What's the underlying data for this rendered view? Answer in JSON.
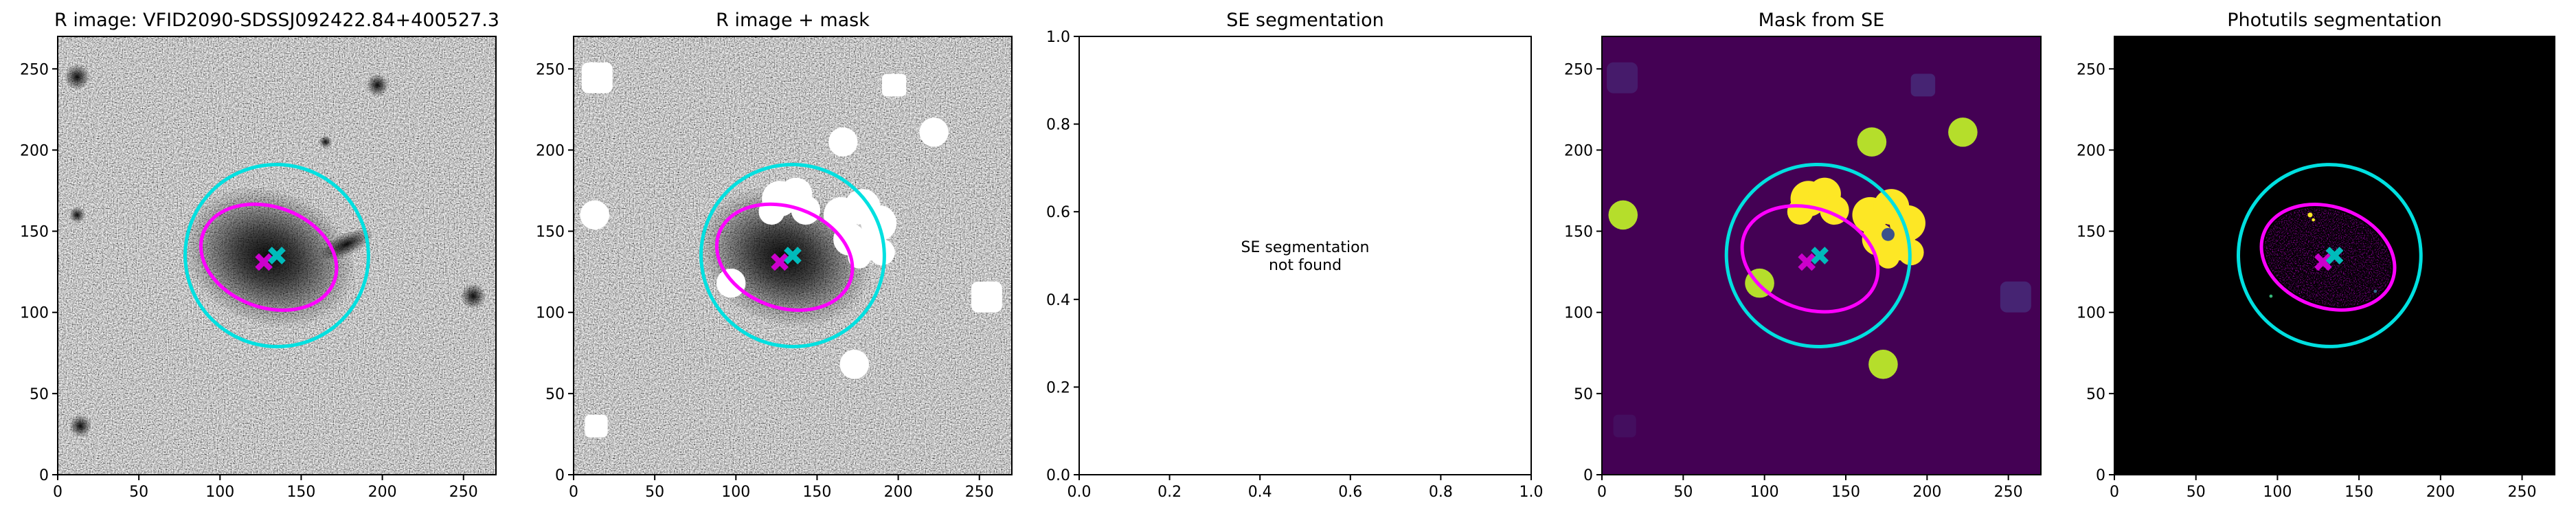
{
  "chart_data": [
    {
      "type": "image",
      "title": "R image: VFID2090-SDSSJ092422.84+400527.3",
      "xlim": [
        0,
        270
      ],
      "ylim": [
        0,
        270
      ],
      "xticks": [
        0,
        50,
        100,
        150,
        200,
        250
      ],
      "yticks": [
        0,
        50,
        100,
        150,
        200,
        250
      ],
      "ellipses": [
        {
          "color": "#00e0e0",
          "center": [
            135,
            135
          ],
          "width": 113,
          "height": 112,
          "angle": -20
        },
        {
          "color": "#ff00ff",
          "center": [
            130,
            134
          ],
          "width": 86,
          "height": 62,
          "angle": -20
        }
      ],
      "markers": [
        {
          "color": "#cc00cc",
          "x": 127,
          "y": 131
        },
        {
          "color": "#00bbbb",
          "x": 135,
          "y": 135
        }
      ]
    },
    {
      "type": "image",
      "title": "R image + mask",
      "xlim": [
        0,
        270
      ],
      "ylim": [
        0,
        270
      ],
      "xticks": [
        0,
        50,
        100,
        150,
        200,
        250
      ],
      "yticks": [
        0,
        50,
        100,
        150,
        200,
        250
      ],
      "ellipses": [
        {
          "color": "#00e0e0",
          "center": [
            135,
            135
          ],
          "width": 113,
          "height": 112,
          "angle": -20
        },
        {
          "color": "#ff00ff",
          "center": [
            130,
            134
          ],
          "width": 86,
          "height": 62,
          "angle": -20
        }
      ],
      "markers": [
        {
          "color": "#cc00cc",
          "x": 127,
          "y": 131
        },
        {
          "color": "#00bbbb",
          "x": 135,
          "y": 135
        }
      ]
    },
    {
      "type": "empty",
      "title": "SE segmentation",
      "xlim": [
        0,
        1
      ],
      "ylim": [
        0,
        1
      ],
      "xticks": [
        {
          "value": 0,
          "label": "0.0"
        },
        {
          "value": 0.2,
          "label": "0.2"
        },
        {
          "value": 0.4,
          "label": "0.4"
        },
        {
          "value": 0.6,
          "label": "0.6"
        },
        {
          "value": 0.8,
          "label": "0.8"
        },
        {
          "value": 1,
          "label": "1.0"
        }
      ],
      "yticks": [
        {
          "value": 0,
          "label": "0.0"
        },
        {
          "value": 0.2,
          "label": "0.2"
        },
        {
          "value": 0.4,
          "label": "0.4"
        },
        {
          "value": 0.6,
          "label": "0.6"
        },
        {
          "value": 0.8,
          "label": "0.8"
        },
        {
          "value": 1,
          "label": "1.0"
        }
      ],
      "annotation": [
        "SE segmentation",
        "not found"
      ]
    },
    {
      "type": "image",
      "title": "Mask from SE",
      "xlim": [
        0,
        270
      ],
      "ylim": [
        0,
        270
      ],
      "xticks": [
        0,
        50,
        100,
        150,
        200,
        250
      ],
      "yticks": [
        0,
        50,
        100,
        150,
        200,
        250
      ],
      "ellipses": [
        {
          "color": "#00e0e0",
          "center": [
            133,
            135
          ],
          "width": 113,
          "height": 112,
          "angle": -20
        },
        {
          "color": "#ff00ff",
          "center": [
            128,
            133
          ],
          "width": 86,
          "height": 62,
          "angle": -20
        }
      ],
      "markers": [
        {
          "color": "#cc00cc",
          "x": 126,
          "y": 131
        },
        {
          "color": "#00bbbb",
          "x": 134,
          "y": 135
        }
      ]
    },
    {
      "type": "image",
      "title": "Photutils segmentation",
      "xlim": [
        0,
        270
      ],
      "ylim": [
        0,
        270
      ],
      "xticks": [
        0,
        50,
        100,
        150,
        200,
        250
      ],
      "yticks": [
        0,
        50,
        100,
        150,
        200,
        250
      ],
      "ellipses": [
        {
          "color": "#00e0e0",
          "center": [
            132,
            135
          ],
          "width": 112,
          "height": 112,
          "angle": -20
        },
        {
          "color": "#ff00ff",
          "center": [
            131,
            134
          ],
          "width": 84,
          "height": 62,
          "angle": -20
        }
      ],
      "markers": [
        {
          "color": "#cc00cc",
          "x": 128,
          "y": 131
        },
        {
          "color": "#00bbbb",
          "x": 135,
          "y": 135
        }
      ]
    }
  ]
}
